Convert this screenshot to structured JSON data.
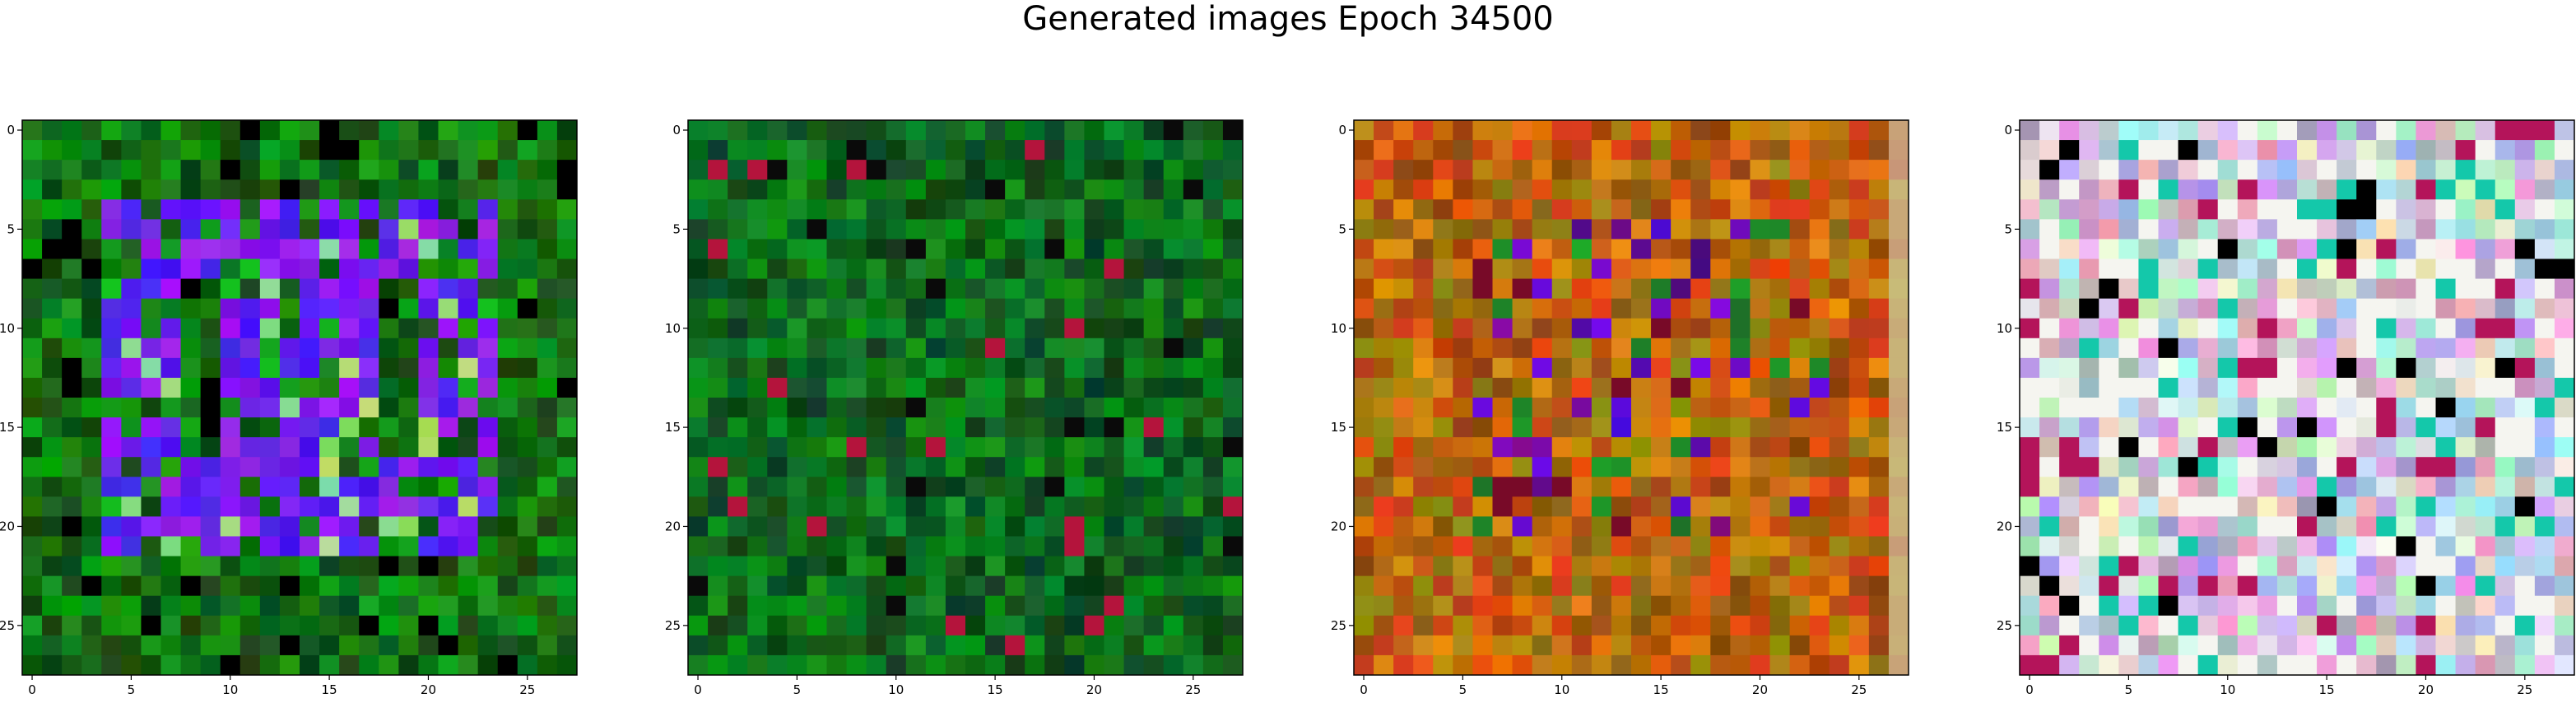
{
  "figure": {
    "title": "Generated images Epoch 34500"
  },
  "panels": [
    {
      "name": "generated-image-1",
      "palette": "green-blue",
      "xticks": [
        "0",
        "5",
        "10",
        "15",
        "20",
        "25"
      ],
      "yticks": [
        "0",
        "5",
        "10",
        "15",
        "20",
        "25"
      ]
    },
    {
      "name": "generated-image-2",
      "palette": "dark-green",
      "xticks": [
        "0",
        "5",
        "10",
        "15",
        "20",
        "25"
      ],
      "yticks": [
        "0",
        "5",
        "10",
        "15",
        "20",
        "25"
      ]
    },
    {
      "name": "generated-image-3",
      "palette": "brown-orange",
      "xticks": [
        "0",
        "5",
        "10",
        "15",
        "20",
        "25"
      ],
      "yticks": [
        "0",
        "5",
        "10",
        "15",
        "20",
        "25"
      ]
    },
    {
      "name": "generated-image-4",
      "palette": "pastel",
      "xticks": [
        "0",
        "5",
        "10",
        "15",
        "20",
        "25"
      ],
      "yticks": [
        "0",
        "5",
        "10",
        "15",
        "20",
        "25"
      ]
    }
  ]
}
